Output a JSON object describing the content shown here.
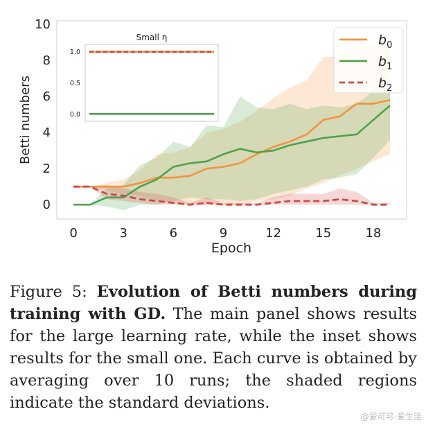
{
  "chart_data": [
    {
      "type": "line",
      "title": "",
      "xlabel": "Epoch",
      "ylabel": "Betti numbers",
      "xlim": [
        -1,
        20
      ],
      "ylim": [
        -0.8,
        10.2
      ],
      "xticks": [
        0,
        3,
        6,
        9,
        12,
        15,
        18
      ],
      "yticks": [
        0,
        2,
        4,
        6,
        8,
        10
      ],
      "grid": false,
      "legend_position": "top-right",
      "x": [
        0,
        1,
        2,
        3,
        4,
        5,
        6,
        7,
        8,
        9,
        10,
        11,
        12,
        13,
        14,
        15,
        16,
        17,
        18,
        19
      ],
      "series": [
        {
          "name": "b0",
          "label_main": "b",
          "label_sub": "0",
          "color": "#f0953f",
          "dash": "solid",
          "values": [
            1,
            1,
            1,
            1,
            1.2,
            1.5,
            1.5,
            1.6,
            2.0,
            2.1,
            2.3,
            2.8,
            3.2,
            3.5,
            3.9,
            4.7,
            4.9,
            5.6,
            5.6,
            5.8
          ],
          "lower": [
            1,
            1,
            0.8,
            0.6,
            0.5,
            0.2,
            0.1,
            0.0,
            0.0,
            0.0,
            0.0,
            0.2,
            0.3,
            0.5,
            0.9,
            1.2,
            1.6,
            2.0,
            2.4,
            2.8
          ],
          "upper": [
            1,
            1,
            1.2,
            1.4,
            1.9,
            2.8,
            2.9,
            3.2,
            4.0,
            4.2,
            4.6,
            5.2,
            5.9,
            6.5,
            6.9,
            8.2,
            8.2,
            9.2,
            8.8,
            8.8
          ]
        },
        {
          "name": "b1",
          "label_main": "b",
          "label_sub": "1",
          "color": "#4ea24a",
          "dash": "solid",
          "values": [
            0,
            0,
            0.4,
            0.4,
            1.0,
            1.4,
            2.1,
            2.3,
            2.4,
            2.8,
            3.1,
            2.9,
            3.0,
            3.3,
            3.5,
            3.7,
            3.8,
            3.9,
            4.7,
            5.5
          ],
          "lower": [
            0,
            0,
            -0.1,
            -0.3,
            0.0,
            0.0,
            0.2,
            0.4,
            0.3,
            0.3,
            0.2,
            0.3,
            0.6,
            0.8,
            1.0,
            1.4,
            1.5,
            1.7,
            2.6,
            3.6
          ],
          "upper": [
            0,
            0,
            0.9,
            1.1,
            2.2,
            2.6,
            3.5,
            3.2,
            4.4,
            4.3,
            6.0,
            5.4,
            5.3,
            5.6,
            5.3,
            5.5,
            5.4,
            5.6,
            6.3,
            7.0
          ]
        },
        {
          "name": "b2",
          "label_main": "b",
          "label_sub": "2",
          "color": "#cc4a44",
          "dash": "dashed",
          "values": [
            1,
            1,
            0.6,
            0.5,
            0.3,
            0.2,
            0.1,
            0.0,
            0.1,
            0.0,
            0.0,
            0.0,
            0.1,
            0.2,
            0.2,
            0.2,
            0.3,
            0.2,
            0.0,
            0.0
          ],
          "lower": [
            1,
            1,
            0.3,
            0.2,
            0.1,
            0.0,
            0.0,
            0.0,
            0.0,
            0.0,
            0.0,
            0.0,
            0.0,
            0.0,
            0.0,
            0.0,
            0.0,
            0.0,
            0.0,
            0.0
          ],
          "upper": [
            1,
            1,
            1.1,
            0.9,
            0.7,
            0.6,
            0.4,
            0.1,
            0.4,
            0.1,
            0.1,
            0.1,
            0.4,
            0.6,
            0.6,
            0.6,
            0.9,
            0.7,
            0.1,
            0.1
          ]
        }
      ]
    },
    {
      "type": "line",
      "title": "Small η",
      "xlim": [
        0,
        19
      ],
      "ylim": [
        -0.12,
        1.12
      ],
      "yticks": [
        0.0,
        0.5,
        1.0
      ],
      "ytick_labels": [
        "0.0",
        "0.5",
        "1.0"
      ],
      "xticks": [],
      "x": [
        0,
        19
      ],
      "series": [
        {
          "name": "b0",
          "color": "#f0953f",
          "dash": "solid",
          "values": [
            1.0,
            1.0
          ]
        },
        {
          "name": "b1",
          "color": "#4ea24a",
          "dash": "solid",
          "values": [
            0.0,
            0.0
          ]
        },
        {
          "name": "b2",
          "color": "#cc4a44",
          "dash": "dashed",
          "values": [
            1.0,
            1.0
          ]
        }
      ]
    }
  ],
  "caption": {
    "label": "Figure 5: ",
    "bold": "Evolution of Betti numbers during training with GD.",
    "text": " The main panel shows results for the large learning rate, while the inset shows results for the small one.  Each curve is obtained by averaging over 10 runs; the shaded regions indicate the standard deviations."
  },
  "watermark": "@爱可可-爱生活"
}
